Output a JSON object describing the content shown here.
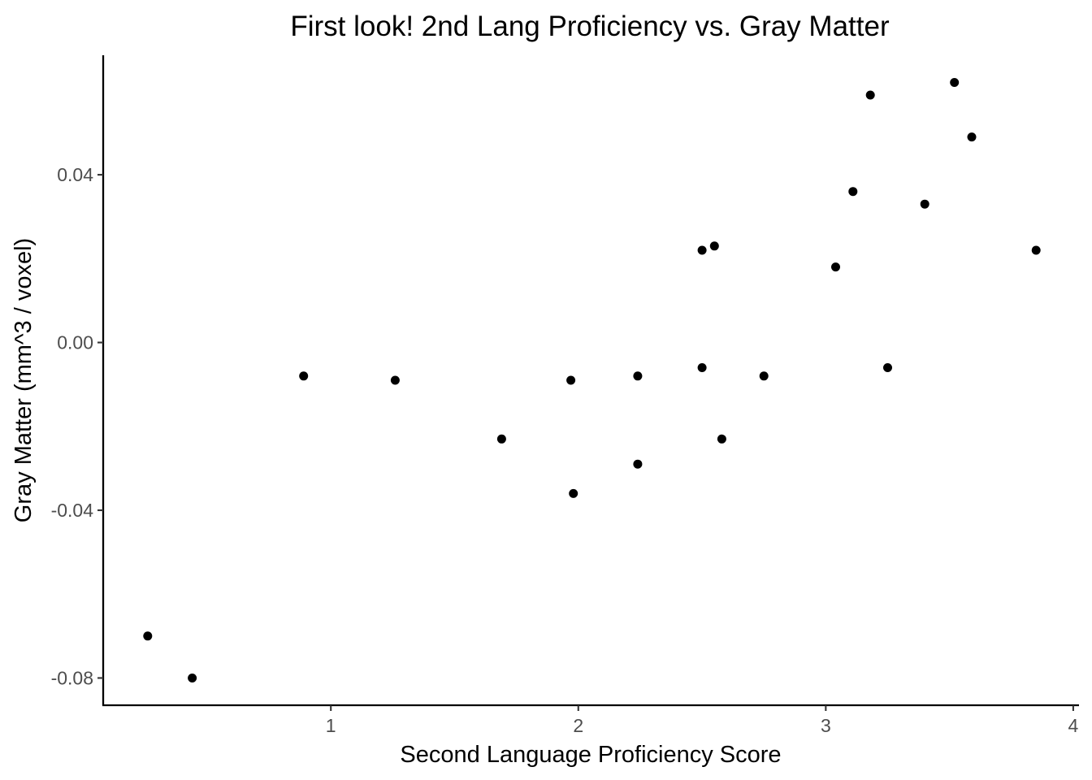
{
  "chart_data": {
    "type": "scatter",
    "title": "First look! 2nd Lang Proficiency vs. Gray Matter",
    "xlabel": "Second Language Proficiency Score",
    "ylabel": "Gray Matter (mm^3 / voxel)",
    "xlim": [
      0.08,
      4.02
    ],
    "ylim": [
      -0.0865,
      0.0685
    ],
    "x_ticks": [
      1,
      2,
      3,
      4
    ],
    "y_ticks": [
      -0.08,
      -0.04,
      0.0,
      0.04
    ],
    "x_tick_labels": [
      "1",
      "2",
      "3",
      "4"
    ],
    "y_tick_labels": [
      "-0.08",
      "-0.04",
      "0.00",
      "0.04"
    ],
    "grid": false,
    "legend": "none",
    "point_color": "#000000",
    "points": [
      {
        "x": 0.26,
        "y": -0.07
      },
      {
        "x": 0.44,
        "y": -0.08
      },
      {
        "x": 0.89,
        "y": -0.008
      },
      {
        "x": 1.26,
        "y": -0.009
      },
      {
        "x": 1.69,
        "y": -0.023
      },
      {
        "x": 1.97,
        "y": -0.009
      },
      {
        "x": 1.98,
        "y": -0.036
      },
      {
        "x": 2.24,
        "y": -0.008
      },
      {
        "x": 2.24,
        "y": -0.029
      },
      {
        "x": 2.5,
        "y": -0.006
      },
      {
        "x": 2.5,
        "y": 0.022
      },
      {
        "x": 2.55,
        "y": 0.023
      },
      {
        "x": 2.58,
        "y": -0.023
      },
      {
        "x": 2.75,
        "y": -0.008
      },
      {
        "x": 3.04,
        "y": 0.018
      },
      {
        "x": 3.11,
        "y": 0.036
      },
      {
        "x": 3.18,
        "y": 0.059
      },
      {
        "x": 3.25,
        "y": -0.006
      },
      {
        "x": 3.4,
        "y": 0.033
      },
      {
        "x": 3.52,
        "y": 0.062
      },
      {
        "x": 3.59,
        "y": 0.049
      },
      {
        "x": 3.85,
        "y": 0.022
      }
    ]
  }
}
